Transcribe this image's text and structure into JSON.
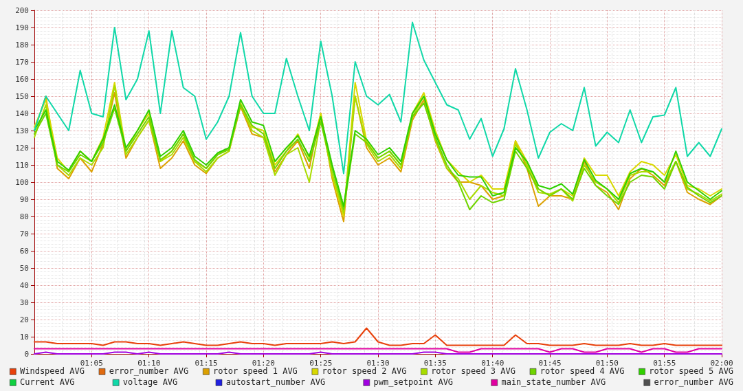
{
  "chart_data": {
    "type": "line",
    "grid": true,
    "legend": "bottom",
    "xlim": [
      1,
      2
    ],
    "ylim": [
      0,
      200
    ],
    "xticks": [
      {
        "value": 1.0833,
        "label": "01:05"
      },
      {
        "value": 1.1667,
        "label": "01:10"
      },
      {
        "value": 1.25,
        "label": "01:15"
      },
      {
        "value": 1.3333,
        "label": "01:20"
      },
      {
        "value": 1.4167,
        "label": "01:25"
      },
      {
        "value": 1.5,
        "label": "01:30"
      },
      {
        "value": 1.5833,
        "label": "01:35"
      },
      {
        "value": 1.6667,
        "label": "01:40"
      },
      {
        "value": 1.75,
        "label": "01:45"
      },
      {
        "value": 1.8333,
        "label": "01:50"
      },
      {
        "value": 1.9167,
        "label": "01:55"
      },
      {
        "value": 2,
        "label": "02:00"
      }
    ],
    "yticks": [
      0,
      10,
      20,
      30,
      40,
      50,
      60,
      70,
      80,
      90,
      100,
      110,
      120,
      130,
      140,
      150,
      160,
      170,
      180,
      190,
      200
    ],
    "x": [
      1,
      1.0167,
      1.0333,
      1.05,
      1.0667,
      1.0833,
      1.1,
      1.1167,
      1.1333,
      1.15,
      1.1667,
      1.1833,
      1.2,
      1.2167,
      1.2333,
      1.25,
      1.2667,
      1.2833,
      1.3,
      1.3167,
      1.3333,
      1.35,
      1.3667,
      1.3833,
      1.4,
      1.4167,
      1.4333,
      1.45,
      1.4667,
      1.4833,
      1.5,
      1.5167,
      1.5333,
      1.55,
      1.5667,
      1.5833,
      1.6,
      1.6167,
      1.6333,
      1.65,
      1.6667,
      1.6833,
      1.7,
      1.7167,
      1.7333,
      1.75,
      1.7667,
      1.7833,
      1.8,
      1.8167,
      1.8333,
      1.85,
      1.8667,
      1.8833,
      1.9,
      1.9167,
      1.9333,
      1.95,
      1.9667,
      1.9833,
      2
    ],
    "series": [
      {
        "name": "Windspeed AVG",
        "color": "#e8400a",
        "values": [
          7,
          7,
          6,
          6,
          6,
          6,
          5,
          7,
          7,
          6,
          6,
          5,
          6,
          7,
          6,
          5,
          5,
          6,
          7,
          6,
          6,
          5,
          6,
          6,
          6,
          6,
          7,
          6,
          7,
          15,
          7,
          5,
          5,
          6,
          6,
          11,
          5,
          5,
          5,
          5,
          5,
          5,
          11,
          6,
          6,
          5,
          5,
          5,
          6,
          5,
          5,
          5,
          6,
          5,
          5,
          6,
          5,
          5,
          5,
          5,
          5
        ]
      },
      {
        "name": "error_number AVG",
        "color": "#e06a10",
        "values": [
          null,
          null,
          null,
          null,
          null,
          null,
          null,
          null,
          null,
          null,
          null,
          null,
          null,
          null,
          null,
          null,
          null,
          null,
          null,
          null,
          null,
          null,
          null,
          null,
          null,
          null,
          null,
          null,
          null,
          null,
          null,
          null,
          null,
          null,
          null,
          null,
          null,
          null,
          null,
          null,
          null,
          null,
          null,
          null,
          null,
          null,
          null,
          null,
          null,
          null,
          null,
          null,
          null,
          null,
          null,
          null,
          null,
          null,
          null,
          null,
          null
        ]
      },
      {
        "name": "rotor speed 1 AVG",
        "color": "#dca000",
        "values": [
          130,
          150,
          108,
          102,
          114,
          106,
          122,
          152,
          114,
          126,
          136,
          108,
          114,
          124,
          110,
          105,
          114,
          118,
          144,
          128,
          126,
          106,
          116,
          124,
          108,
          140,
          102,
          77,
          150,
          120,
          110,
          114,
          106,
          136,
          148,
          124,
          108,
          100,
          100,
          98,
          90,
          92,
          124,
          108,
          86,
          92,
          92,
          90,
          112,
          98,
          94,
          84,
          102,
          108,
          104,
          98,
          112,
          94,
          90,
          87,
          92
        ]
      },
      {
        "name": "rotor speed 2 AVG",
        "color": "#d8d800",
        "values": [
          132,
          148,
          114,
          106,
          118,
          112,
          126,
          158,
          118,
          130,
          140,
          112,
          118,
          128,
          112,
          108,
          116,
          120,
          146,
          132,
          130,
          110,
          118,
          128,
          114,
          140,
          104,
          80,
          158,
          124,
          114,
          118,
          110,
          140,
          152,
          130,
          113,
          106,
          100,
          104,
          96,
          96,
          124,
          112,
          96,
          92,
          96,
          92,
          114,
          104,
          104,
          92,
          106,
          112,
          110,
          104,
          116,
          98,
          96,
          92,
          96
        ]
      },
      {
        "name": "rotor speed 3 AVG",
        "color": "#a8dc00",
        "values": [
          126,
          145,
          110,
          104,
          114,
          110,
          120,
          156,
          116,
          126,
          136,
          112,
          116,
          126,
          112,
          106,
          114,
          118,
          145,
          130,
          126,
          104,
          116,
          120,
          100,
          136,
          105,
          82,
          150,
          122,
          112,
          116,
          108,
          138,
          150,
          125,
          108,
          102,
          90,
          98,
          94,
          92,
          122,
          110,
          94,
          93,
          96,
          89,
          110,
          100,
          96,
          88,
          104,
          106,
          106,
          100,
          112,
          96,
          93,
          89,
          93
        ]
      },
      {
        "name": "rotor speed 4 AVG",
        "color": "#70d400",
        "values": [
          128,
          140,
          110,
          106,
          116,
          112,
          123,
          143,
          118,
          128,
          138,
          113,
          118,
          128,
          113,
          108,
          116,
          119,
          145,
          133,
          128,
          108,
          118,
          125,
          112,
          135,
          108,
          84,
          128,
          123,
          114,
          118,
          110,
          138,
          146,
          126,
          110,
          100,
          84,
          92,
          88,
          90,
          118,
          108,
          96,
          92,
          96,
          90,
          108,
          98,
          92,
          87,
          100,
          104,
          103,
          96,
          112,
          97,
          92,
          88,
          92
        ]
      },
      {
        "name": "rotor speed 5 AVG",
        "color": "#30d000",
        "values": [
          130,
          142,
          112,
          107,
          118,
          112,
          125,
          145,
          120,
          130,
          142,
          115,
          120,
          130,
          115,
          110,
          117,
          120,
          148,
          135,
          133,
          112,
          120,
          127,
          115,
          138,
          110,
          86,
          130,
          125,
          116,
          120,
          112,
          140,
          150,
          128,
          113,
          104,
          103,
          103,
          92,
          94,
          120,
          112,
          98,
          96,
          99,
          93,
          113,
          101,
          96,
          90,
          105,
          108,
          106,
          100,
          118,
          100,
          95,
          90,
          95
        ]
      },
      {
        "name": "Current AVG",
        "color": "#10d040",
        "values": [
          null,
          null,
          null,
          null,
          null,
          null,
          null,
          null,
          null,
          null,
          null,
          null,
          null,
          null,
          null,
          null,
          null,
          null,
          null,
          null,
          null,
          null,
          null,
          null,
          null,
          null,
          null,
          null,
          null,
          null,
          null,
          null,
          null,
          null,
          null,
          null,
          null,
          null,
          null,
          null,
          null,
          null,
          null,
          null,
          null,
          null,
          null,
          null,
          null,
          null,
          null,
          null,
          null,
          null,
          null,
          null,
          null,
          null,
          null,
          null,
          null
        ]
      },
      {
        "name": "voltage AVG",
        "color": "#10d8a8",
        "values": [
          130,
          150,
          140,
          130,
          165,
          140,
          138,
          190,
          148,
          160,
          188,
          140,
          188,
          155,
          150,
          125,
          135,
          150,
          187,
          150,
          140,
          140,
          172,
          150,
          130,
          182,
          150,
          105,
          170,
          150,
          145,
          151,
          135,
          193,
          171,
          158,
          145,
          142,
          125,
          137,
          115,
          131,
          166,
          142,
          114,
          129,
          134,
          130,
          155,
          121,
          129,
          123,
          142,
          123,
          138,
          139,
          155,
          115,
          123,
          115,
          131
        ]
      },
      {
        "name": "autostart_number AVG",
        "color": "#2020e0",
        "values": [
          null,
          null,
          null,
          null,
          null,
          null,
          null,
          null,
          null,
          null,
          null,
          null,
          null,
          null,
          null,
          null,
          null,
          null,
          null,
          null,
          null,
          null,
          null,
          null,
          null,
          null,
          null,
          null,
          null,
          null,
          null,
          null,
          null,
          null,
          null,
          null,
          null,
          null,
          null,
          null,
          null,
          null,
          null,
          null,
          null,
          null,
          null,
          null,
          null,
          null,
          null,
          null,
          null,
          null,
          null,
          null,
          null,
          null,
          null,
          null,
          null
        ]
      },
      {
        "name": "pwm_setpoint AVG",
        "color": "#a000e0",
        "values": [
          0,
          1,
          0,
          0,
          0,
          0,
          0,
          1,
          1,
          0,
          1,
          0,
          0,
          0,
          0,
          0,
          0,
          1,
          0,
          0,
          0,
          0,
          0,
          0,
          0,
          1,
          0,
          0,
          0,
          0,
          0,
          0,
          0,
          0,
          1,
          1,
          0,
          0,
          0,
          0,
          0,
          0,
          0,
          0,
          0,
          0,
          0,
          0,
          0,
          0,
          0,
          0,
          0,
          0,
          0,
          0,
          0,
          0,
          0,
          0,
          0
        ]
      },
      {
        "name": "main_state_number AVG",
        "color": "#e000a0",
        "values": [
          3,
          3,
          3,
          3,
          3,
          3,
          3,
          3,
          3,
          3,
          3,
          3,
          3,
          3,
          3,
          3,
          3,
          3,
          3,
          3,
          3,
          3,
          3,
          3,
          3,
          3,
          3,
          3,
          3,
          3,
          3,
          3,
          3,
          3,
          3,
          3,
          3,
          1,
          1,
          3,
          3,
          3,
          3,
          3,
          3,
          1,
          3,
          3,
          1,
          1,
          3,
          3,
          3,
          1,
          3,
          3,
          1,
          1,
          3,
          3,
          3
        ]
      },
      {
        "name": "error_number AVG",
        "color": "#505050",
        "values": [
          null,
          null,
          null,
          null,
          null,
          null,
          null,
          null,
          null,
          null,
          null,
          null,
          null,
          null,
          null,
          null,
          null,
          null,
          null,
          null,
          null,
          null,
          null,
          null,
          null,
          null,
          null,
          null,
          null,
          null,
          null,
          null,
          null,
          null,
          null,
          null,
          null,
          null,
          null,
          null,
          null,
          null,
          null,
          null,
          null,
          null,
          null,
          null,
          null,
          null,
          null,
          null,
          null,
          null,
          null,
          null,
          null,
          null,
          null,
          null,
          null
        ]
      }
    ]
  }
}
